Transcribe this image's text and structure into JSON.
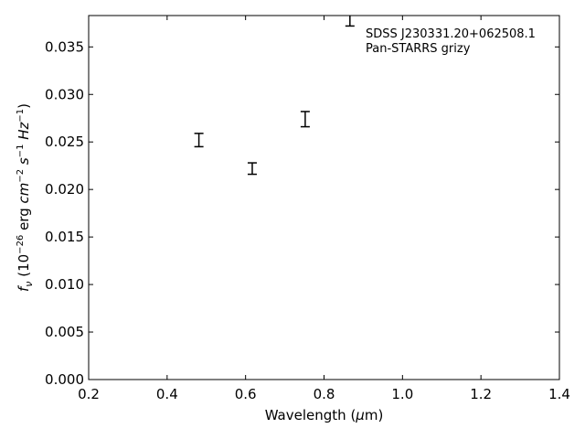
{
  "chart_data": {
    "type": "scatter",
    "style": "errorbar",
    "xlim": [
      0.2,
      1.4
    ],
    "ylim": [
      0.0,
      0.0383
    ],
    "xticks": [
      "0.2",
      "0.4",
      "0.6",
      "0.8",
      "1.0",
      "1.2",
      "1.4"
    ],
    "yticks": [
      "0.000",
      "0.005",
      "0.010",
      "0.015",
      "0.020",
      "0.025",
      "0.030",
      "0.035"
    ],
    "xlabel_prefix": "Wavelength (",
    "xlabel_symbol": "μ",
    "xlabel_suffix": "m)",
    "ylabel": {
      "f": "f",
      "nu": "ν",
      "open": " (10",
      "exp1": "−26",
      "erg": " erg ",
      "cm": "cm",
      "exp2": "−2",
      "s": " s",
      "exp3": "−1",
      "hz": " Hz",
      "exp4": "−1",
      "close": ")"
    },
    "annotation": [
      "SDSS J230331.20+062508.1",
      "Pan-STARRS grizy"
    ],
    "grid": false,
    "points": [
      {
        "x": 0.481,
        "y": 0.0252,
        "err": 0.0007
      },
      {
        "x": 0.617,
        "y": 0.0222,
        "err": 0.0006
      },
      {
        "x": 0.752,
        "y": 0.0274,
        "err": 0.0008
      },
      {
        "x": 0.866,
        "y": 0.038,
        "err": 0.0008
      }
    ],
    "colors": {
      "marker": "#000000",
      "axes": "#000000"
    }
  }
}
